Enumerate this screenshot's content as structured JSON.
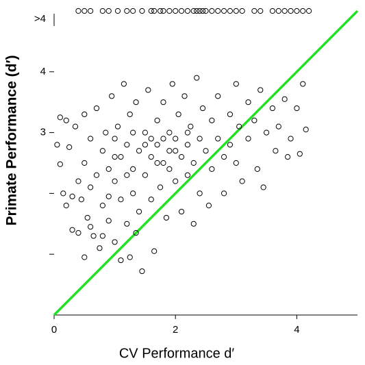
{
  "chart_data": {
    "type": "scatter",
    "x_label": "CV Performance d′",
    "y_label": "Primate Performance (d′)",
    "xlim": [
      0,
      5
    ],
    "ylim": [
      0,
      5
    ],
    "xticks": [
      0,
      2,
      4
    ],
    "yticks": [
      {
        "value": 1,
        "label": null
      },
      {
        "value": 2,
        "label": null
      },
      3,
      4
    ],
    "marker_color": "#000000",
    "series": [
      {
        "x": [
          0.05,
          0.1,
          0.1,
          0.2,
          0.15,
          0.2,
          0.3,
          0.25,
          0.3,
          0.35,
          0.4,
          0.45,
          0.4,
          0.5,
          0.5,
          0.55,
          0.6,
          0.6,
          0.65,
          0.7,
          0.7,
          0.75,
          0.8,
          0.8,
          0.85,
          0.9,
          0.9,
          0.95,
          1.0,
          1.0,
          1.0,
          1.05,
          1.1,
          1.1,
          1.15,
          1.2,
          1.2,
          1.25,
          1.3,
          1.3,
          1.35,
          1.4,
          1.4,
          1.45,
          1.5,
          1.5,
          1.55,
          1.6,
          1.6,
          1.65,
          1.7,
          1.7,
          1.75,
          1.8,
          1.8,
          1.85,
          1.9,
          1.9,
          1.95,
          2.0,
          2.0,
          2.05,
          2.1,
          2.1,
          2.15,
          2.2,
          2.2,
          2.25,
          2.3,
          2.35,
          2.4,
          2.4,
          2.45,
          2.5,
          2.55,
          2.6,
          2.6,
          2.7,
          2.7,
          2.8,
          2.8,
          2.9,
          2.9,
          3.0,
          3.0,
          3.05,
          3.1,
          3.2,
          3.2,
          3.3,
          3.35,
          3.4,
          3.45,
          3.5,
          3.6,
          3.65,
          3.7,
          3.8,
          3.9,
          4.0,
          4.05,
          4.1,
          4.15,
          3.85,
          1.0,
          1.3,
          1.6,
          1.8,
          2.0,
          1.5,
          1.7,
          1.9,
          2.2,
          1.2,
          0.9,
          0.6,
          1.35,
          2.3,
          1.1,
          1.25,
          0.5,
          0.8
        ],
        "y": [
          2.8,
          3.25,
          2.48,
          3.2,
          2.0,
          1.8,
          1.95,
          2.76,
          1.4,
          3.1,
          2.2,
          1.9,
          1.35,
          2.5,
          3.3,
          1.6,
          2.9,
          2.1,
          1.3,
          3.4,
          2.3,
          1.1,
          2.7,
          1.8,
          3.0,
          2.4,
          1.55,
          3.6,
          2.9,
          2.2,
          1.2,
          3.1,
          2.6,
          1.9,
          3.8,
          2.8,
          1.5,
          3.3,
          2.4,
          2.0,
          3.5,
          2.7,
          1.7,
          0.72,
          3.0,
          2.3,
          3.7,
          2.6,
          1.9,
          1.05,
          3.2,
          2.8,
          2.1,
          3.5,
          2.5,
          1.6,
          3.0,
          2.7,
          3.8,
          2.9,
          2.2,
          3.3,
          2.6,
          1.7,
          3.6,
          2.8,
          2.3,
          3.1,
          2.5,
          3.9,
          2.9,
          2.0,
          3.4,
          2.7,
          1.8,
          3.2,
          2.4,
          3.6,
          2.9,
          2.6,
          2.0,
          3.3,
          2.8,
          3.8,
          2.5,
          3.1,
          2.2,
          3.5,
          2.9,
          3.2,
          2.4,
          3.7,
          2.1,
          3.0,
          3.4,
          2.7,
          3.1,
          3.55,
          2.9,
          3.4,
          2.65,
          3.8,
          3.05,
          2.6,
          2.6,
          3.0,
          2.9,
          2.9,
          2.7,
          2.8,
          2.5,
          2.4,
          3.0,
          2.3,
          1.95,
          1.45,
          1.35,
          1.5,
          0.9,
          0.95,
          0.95,
          1.3
        ]
      }
    ],
    "overflow": {
      "label": ">4",
      "x": [
        0.4,
        0.5,
        0.6,
        0.8,
        0.9,
        1.05,
        1.2,
        1.3,
        1.45,
        1.6,
        1.65,
        1.75,
        1.8,
        1.9,
        2.0,
        2.1,
        2.2,
        2.3,
        2.35,
        2.4,
        2.45,
        2.5,
        2.6,
        2.7,
        2.8,
        2.9,
        3.0,
        3.1,
        3.3,
        3.4,
        3.6,
        3.7,
        3.8,
        3.9,
        4.0,
        4.1,
        4.2
      ]
    },
    "reference_line": {
      "color": "#22e022",
      "x": [
        0,
        5
      ],
      "y": [
        0,
        5
      ]
    }
  }
}
